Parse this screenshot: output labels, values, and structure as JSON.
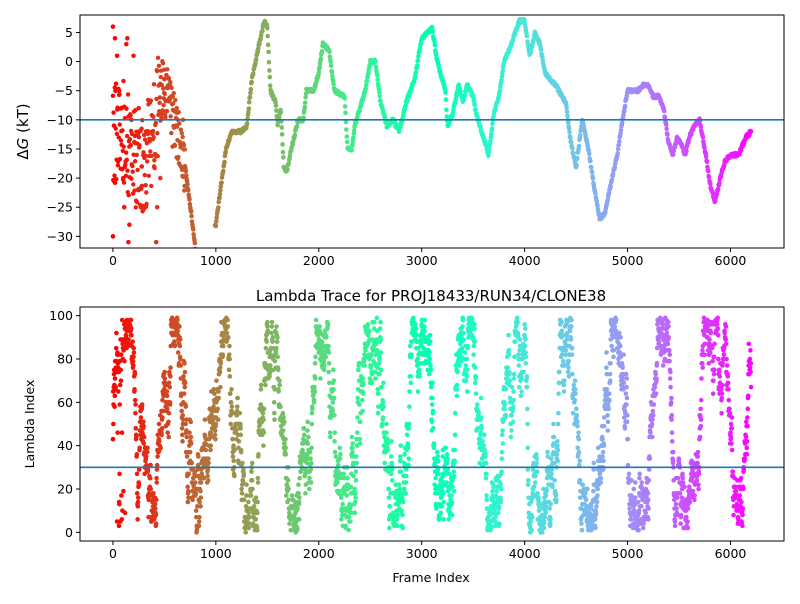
{
  "colormap": "rainbow",
  "chart_data": [
    {
      "type": "scatter",
      "title": "",
      "xlabel": "",
      "ylabel_prefix": "Δ",
      "ylabel_var": "G",
      "ylabel_suffix": " (kT)",
      "xlim": [
        -320,
        6520
      ],
      "ylim": [
        -32,
        8
      ],
      "xticks": [
        0,
        1000,
        2000,
        3000,
        4000,
        5000,
        6000
      ],
      "yticks": [
        -30,
        -25,
        -20,
        -15,
        -10,
        -5,
        0,
        5
      ],
      "hline": -10,
      "hline_color": "#1f77b4",
      "n_frames": 6200,
      "trace_keypoints": [
        [
          100,
          -12
        ],
        [
          200,
          -16
        ],
        [
          300,
          -18
        ],
        [
          400,
          -12
        ],
        [
          450,
          -6
        ],
        [
          500,
          -4
        ],
        [
          550,
          -8
        ],
        [
          620,
          -12
        ],
        [
          700,
          -18
        ],
        [
          760,
          -26
        ],
        [
          800,
          -32
        ],
        [
          1000,
          -28
        ],
        [
          1060,
          -20
        ],
        [
          1100,
          -15
        ],
        [
          1150,
          -12
        ],
        [
          1250,
          -12
        ],
        [
          1300,
          -11
        ],
        [
          1350,
          -3
        ],
        [
          1420,
          3
        ],
        [
          1470,
          7
        ],
        [
          1500,
          6
        ],
        [
          1530,
          -5
        ],
        [
          1580,
          -7
        ],
        [
          1600,
          -11
        ],
        [
          1630,
          -8
        ],
        [
          1660,
          -18
        ],
        [
          1690,
          -19
        ],
        [
          1720,
          -16
        ],
        [
          1800,
          -10
        ],
        [
          1850,
          -10
        ],
        [
          1880,
          -5
        ],
        [
          1950,
          -5
        ],
        [
          2000,
          -2
        ],
        [
          2040,
          3
        ],
        [
          2100,
          2
        ],
        [
          2150,
          -5
        ],
        [
          2250,
          -6
        ],
        [
          2280,
          -15
        ],
        [
          2320,
          -15
        ],
        [
          2350,
          -11
        ],
        [
          2400,
          -8
        ],
        [
          2450,
          -5
        ],
        [
          2500,
          0
        ],
        [
          2550,
          0
        ],
        [
          2600,
          -7
        ],
        [
          2660,
          -11
        ],
        [
          2720,
          -10
        ],
        [
          2780,
          -12
        ],
        [
          2850,
          -7
        ],
        [
          2930,
          -3
        ],
        [
          3000,
          4
        ],
        [
          3060,
          5
        ],
        [
          3100,
          6
        ],
        [
          3150,
          0
        ],
        [
          3230,
          -5
        ],
        [
          3250,
          -11
        ],
        [
          3300,
          -9
        ],
        [
          3360,
          -4
        ],
        [
          3400,
          -7
        ],
        [
          3440,
          -4
        ],
        [
          3500,
          -6
        ],
        [
          3530,
          -9
        ],
        [
          3600,
          -13
        ],
        [
          3650,
          -16
        ],
        [
          3700,
          -9
        ],
        [
          3750,
          -6
        ],
        [
          3800,
          0
        ],
        [
          3850,
          2
        ],
        [
          3950,
          7
        ],
        [
          4000,
          7
        ],
        [
          4050,
          1
        ],
        [
          4100,
          5
        ],
        [
          4150,
          3
        ],
        [
          4200,
          -2
        ],
        [
          4300,
          -4
        ],
        [
          4400,
          -7
        ],
        [
          4450,
          -14
        ],
        [
          4500,
          -18
        ],
        [
          4560,
          -10
        ],
        [
          4620,
          -15
        ],
        [
          4680,
          -22
        ],
        [
          4730,
          -27
        ],
        [
          4780,
          -26
        ],
        [
          4850,
          -20
        ],
        [
          4900,
          -16
        ],
        [
          4950,
          -10
        ],
        [
          5000,
          -5
        ],
        [
          5100,
          -5
        ],
        [
          5150,
          -4
        ],
        [
          5200,
          -4
        ],
        [
          5250,
          -6
        ],
        [
          5300,
          -6
        ],
        [
          5350,
          -8
        ],
        [
          5400,
          -14
        ],
        [
          5440,
          -16
        ],
        [
          5480,
          -13
        ],
        [
          5520,
          -14
        ],
        [
          5560,
          -16
        ],
        [
          5600,
          -13
        ],
        [
          5650,
          -11
        ],
        [
          5700,
          -10
        ],
        [
          5760,
          -16
        ],
        [
          5800,
          -21
        ],
        [
          5850,
          -24
        ],
        [
          5900,
          -20
        ],
        [
          5950,
          -17
        ],
        [
          6000,
          -16
        ],
        [
          6080,
          -16
        ],
        [
          6150,
          -13
        ],
        [
          6200,
          -12
        ]
      ],
      "early_scatter": [
        [
          0,
          6
        ],
        [
          0,
          -30
        ],
        [
          10,
          -11
        ],
        [
          20,
          4
        ],
        [
          40,
          1
        ],
        [
          60,
          -5
        ],
        [
          80,
          -8
        ],
        [
          100,
          -20
        ],
        [
          110,
          -25
        ],
        [
          130,
          3
        ],
        [
          140,
          4
        ],
        [
          160,
          -28
        ],
        [
          150,
          -31
        ],
        [
          180,
          -10
        ],
        [
          200,
          1
        ],
        [
          220,
          -14
        ],
        [
          250,
          -8
        ],
        [
          280,
          -18
        ],
        [
          320,
          -12
        ],
        [
          360,
          -7
        ],
        [
          400,
          -18
        ],
        [
          420,
          -31
        ],
        [
          430,
          -25
        ],
        [
          460,
          -20
        ],
        [
          500,
          -3
        ],
        [
          580,
          -6
        ],
        [
          620,
          -8
        ],
        [
          680,
          -10
        ]
      ]
    },
    {
      "type": "scatter",
      "title": "Lambda Trace for PROJ18433/RUN34/CLONE38",
      "xlabel": "Frame Index",
      "ylabel": "Lambda Index",
      "xlim": [
        -320,
        6520
      ],
      "ylim": [
        -4,
        104
      ],
      "xticks": [
        0,
        1000,
        2000,
        3000,
        4000,
        5000,
        6000
      ],
      "yticks": [
        0,
        20,
        40,
        60,
        80,
        100
      ],
      "hline": 30,
      "hline_color": "#1f77b4",
      "n_frames": 6200,
      "trace_stride": 2,
      "lambda_max": 99,
      "sweep_period": 500
    }
  ]
}
